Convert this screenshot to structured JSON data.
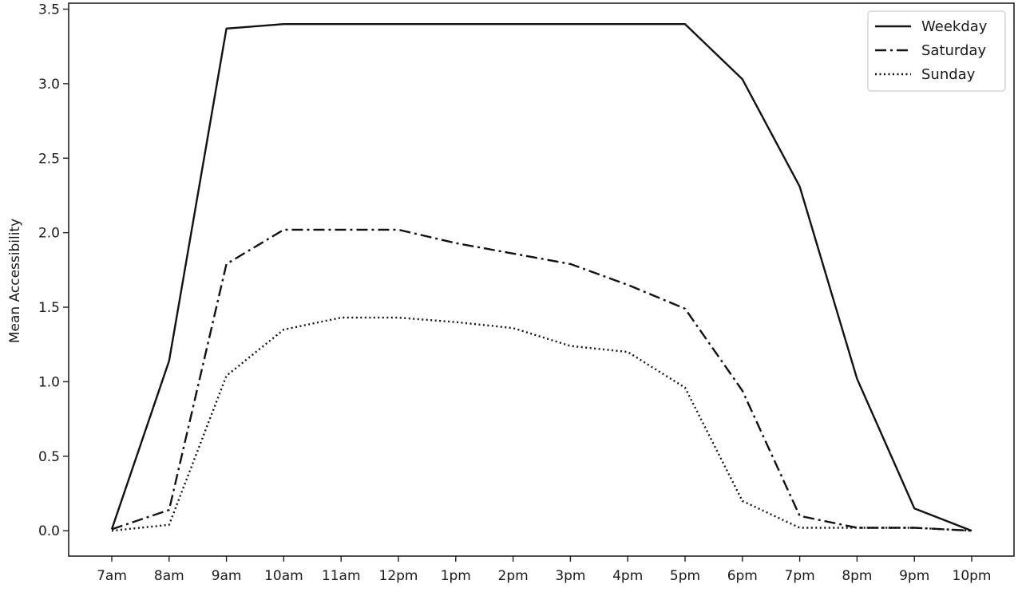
{
  "chart_data": {
    "type": "line",
    "ylabel": "Mean Accessibility",
    "xlabel": "",
    "categories": [
      "7am",
      "8am",
      "9am",
      "10am",
      "11am",
      "12pm",
      "1pm",
      "2pm",
      "3pm",
      "4pm",
      "5pm",
      "6pm",
      "7pm",
      "8pm",
      "9pm",
      "10pm"
    ],
    "ylim": [
      -0.17,
      3.54
    ],
    "yticks": [
      0.0,
      0.5,
      1.0,
      1.5,
      2.0,
      2.5,
      3.0,
      3.5
    ],
    "ytick_labels": [
      "0.0",
      "0.5",
      "1.0",
      "1.5",
      "2.0",
      "2.5",
      "3.0",
      "3.5"
    ],
    "grid": false,
    "legend_position": "top-right",
    "series": [
      {
        "name": "Weekday",
        "line_style": "solid",
        "values": [
          0.01,
          1.14,
          3.37,
          3.4,
          3.4,
          3.4,
          3.4,
          3.4,
          3.4,
          3.4,
          3.4,
          3.03,
          2.31,
          1.02,
          0.15,
          0.0
        ]
      },
      {
        "name": "Saturday",
        "line_style": "dashdot",
        "values": [
          0.01,
          0.14,
          1.79,
          2.02,
          2.02,
          2.02,
          1.93,
          1.86,
          1.79,
          1.65,
          1.49,
          0.94,
          0.1,
          0.02,
          0.02,
          0.0
        ]
      },
      {
        "name": "Sunday",
        "line_style": "dotted",
        "values": [
          0.0,
          0.04,
          1.04,
          1.35,
          1.43,
          1.43,
          1.4,
          1.36,
          1.24,
          1.2,
          0.96,
          0.2,
          0.02,
          0.02,
          0.02,
          0.0
        ]
      }
    ],
    "line_color": "#111111"
  }
}
